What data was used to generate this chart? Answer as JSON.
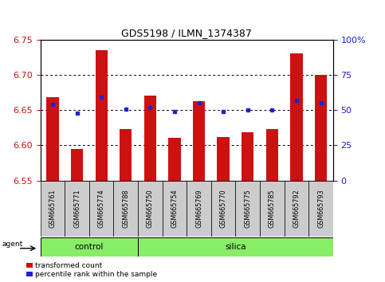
{
  "title": "GDS5198 / ILMN_1374387",
  "samples": [
    "GSM665761",
    "GSM665771",
    "GSM665774",
    "GSM665788",
    "GSM665750",
    "GSM665754",
    "GSM665769",
    "GSM665770",
    "GSM665775",
    "GSM665785",
    "GSM665792",
    "GSM665793"
  ],
  "red_values": [
    6.668,
    6.595,
    6.735,
    6.623,
    6.67,
    6.61,
    6.662,
    6.612,
    6.618,
    6.623,
    6.73,
    6.7
  ],
  "blue_values": [
    6.658,
    6.645,
    6.668,
    6.651,
    6.654,
    6.648,
    6.66,
    6.648,
    6.65,
    6.65,
    6.664,
    6.66
  ],
  "ylim_left": [
    6.55,
    6.75
  ],
  "ylim_right": [
    0,
    100
  ],
  "yticks_left": [
    6.55,
    6.6,
    6.65,
    6.7,
    6.75
  ],
  "yticks_right": [
    0,
    25,
    50,
    75,
    100
  ],
  "ytick_labels_right": [
    "0",
    "25",
    "50",
    "75",
    "100%"
  ],
  "bar_color": "#cc1111",
  "blue_color": "#2222cc",
  "bar_bottom": 6.55,
  "group_bar_color": "#88ee66",
  "label_area_color": "#cccccc",
  "agent_label": "agent",
  "legend_items": [
    "transformed count",
    "percentile rank within the sample"
  ],
  "ctrl_count": 4,
  "silica_count": 8,
  "n_samples": 12
}
